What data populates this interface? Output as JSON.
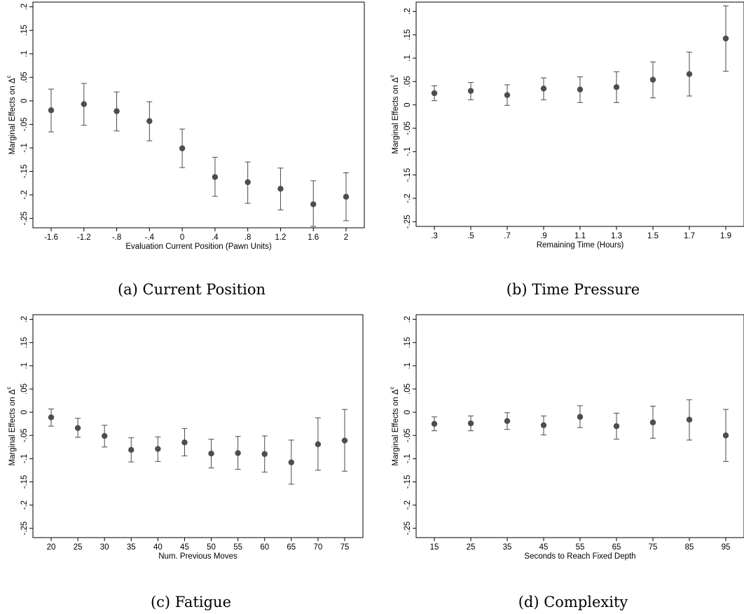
{
  "chart_data": [
    {
      "type": "scatter",
      "subtype": "point-estimates-with-confidence-intervals",
      "caption": "(a) Current Position",
      "xlabel": "Evaluation Current Position (Pawn Units)",
      "ylabel": "Marginal Effects on Δ",
      "ylabel_superscript": "c",
      "x_tick_labels": [
        "-1.6",
        "-1.2",
        "-.8",
        "-.4",
        "0",
        ".4",
        ".8",
        "1.2",
        "1.6",
        "2"
      ],
      "y_tick_labels": [
        ".2",
        ".15",
        ".1",
        ".05",
        "0",
        "-.05",
        "-.1",
        "-.15",
        "-.2",
        "-.25"
      ],
      "ylim": [
        -0.27,
        0.21
      ],
      "grid": false,
      "points": [
        {
          "x": "-1.6",
          "y": -0.02,
          "lo": -0.066,
          "hi": 0.025
        },
        {
          "x": "-1.2",
          "y": -0.007,
          "lo": -0.052,
          "hi": 0.037
        },
        {
          "x": "-.8",
          "y": -0.022,
          "lo": -0.064,
          "hi": 0.019
        },
        {
          "x": "-.4",
          "y": -0.043,
          "lo": -0.085,
          "hi": -0.002
        },
        {
          "x": "0",
          "y": -0.101,
          "lo": -0.142,
          "hi": -0.06
        },
        {
          "x": ".4",
          "y": -0.162,
          "lo": -0.203,
          "hi": -0.12
        },
        {
          "x": ".8",
          "y": -0.173,
          "lo": -0.218,
          "hi": -0.13
        },
        {
          "x": "1.2",
          "y": -0.187,
          "lo": -0.232,
          "hi": -0.143
        },
        {
          "x": "1.6",
          "y": -0.22,
          "lo": -0.267,
          "hi": -0.17
        },
        {
          "x": "2",
          "y": -0.204,
          "lo": -0.255,
          "hi": -0.153
        }
      ]
    },
    {
      "type": "scatter",
      "subtype": "point-estimates-with-confidence-intervals",
      "caption": "(b) Time Pressure",
      "xlabel": "Remaining Time (Hours)",
      "ylabel": "Marginal Effects on Δ",
      "ylabel_superscript": "c",
      "x_tick_labels": [
        ".3",
        ".5",
        ".7",
        ".9",
        "1.1",
        "1.3",
        "1.5",
        "1.7",
        "1.9"
      ],
      "y_tick_labels": [
        ".2",
        ".15",
        ".1",
        ".05",
        "0",
        "-.05",
        "-.1",
        "-.15",
        "-.2",
        "-.25"
      ],
      "ylim": [
        -0.26,
        0.22
      ],
      "grid": false,
      "points": [
        {
          "x": ".3",
          "y": 0.025,
          "lo": 0.009,
          "hi": 0.041
        },
        {
          "x": ".5",
          "y": 0.03,
          "lo": 0.011,
          "hi": 0.048
        },
        {
          "x": ".7",
          "y": 0.021,
          "lo": -0.001,
          "hi": 0.043
        },
        {
          "x": ".9",
          "y": 0.035,
          "lo": 0.011,
          "hi": 0.058
        },
        {
          "x": "1.1",
          "y": 0.033,
          "lo": 0.005,
          "hi": 0.06
        },
        {
          "x": "1.3",
          "y": 0.038,
          "lo": 0.005,
          "hi": 0.071
        },
        {
          "x": "1.5",
          "y": 0.054,
          "lo": 0.015,
          "hi": 0.092
        },
        {
          "x": "1.7",
          "y": 0.066,
          "lo": 0.019,
          "hi": 0.113
        },
        {
          "x": "1.9",
          "y": 0.142,
          "lo": 0.072,
          "hi": 0.212
        }
      ]
    },
    {
      "type": "scatter",
      "subtype": "point-estimates-with-confidence-intervals",
      "caption": "(c) Fatigue",
      "xlabel": "Num. Previous Moves",
      "ylabel": "Marginal Effects on Δ",
      "ylabel_superscript": "c",
      "x_tick_labels": [
        "20",
        "25",
        "30",
        "35",
        "40",
        "45",
        "50",
        "55",
        "60",
        "65",
        "70",
        "75"
      ],
      "y_tick_labels": [
        ".2",
        ".15",
        ".1",
        ".05",
        "0",
        "-.05",
        "-.1",
        "-.15",
        "-.2",
        "-.25"
      ],
      "ylim": [
        -0.27,
        0.21
      ],
      "grid": false,
      "points": [
        {
          "x": "20",
          "y": -0.011,
          "lo": -0.03,
          "hi": 0.007
        },
        {
          "x": "25",
          "y": -0.034,
          "lo": -0.054,
          "hi": -0.013
        },
        {
          "x": "30",
          "y": -0.051,
          "lo": -0.075,
          "hi": -0.028
        },
        {
          "x": "35",
          "y": -0.081,
          "lo": -0.107,
          "hi": -0.055
        },
        {
          "x": "40",
          "y": -0.079,
          "lo": -0.106,
          "hi": -0.053
        },
        {
          "x": "45",
          "y": -0.065,
          "lo": -0.094,
          "hi": -0.035
        },
        {
          "x": "50",
          "y": -0.089,
          "lo": -0.12,
          "hi": -0.058
        },
        {
          "x": "55",
          "y": -0.088,
          "lo": -0.123,
          "hi": -0.052
        },
        {
          "x": "60",
          "y": -0.09,
          "lo": -0.129,
          "hi": -0.051
        },
        {
          "x": "65",
          "y": -0.108,
          "lo": -0.155,
          "hi": -0.06
        },
        {
          "x": "70",
          "y": -0.069,
          "lo": -0.125,
          "hi": -0.012
        },
        {
          "x": "75",
          "y": -0.061,
          "lo": -0.127,
          "hi": 0.006
        }
      ]
    },
    {
      "type": "scatter",
      "subtype": "point-estimates-with-confidence-intervals",
      "caption": "(d) Complexity",
      "xlabel": "Seconds to Reach Fixed Depth",
      "ylabel": "Marginal Effects on Δ",
      "ylabel_superscript": "c",
      "x_tick_labels": [
        "15",
        "25",
        "35",
        "45",
        "55",
        "65",
        "75",
        "85",
        "95"
      ],
      "y_tick_labels": [
        ".2",
        ".15",
        ".1",
        ".05",
        "0",
        "-.05",
        "-.1",
        "-.15",
        "-.2",
        "-.25"
      ],
      "ylim": [
        -0.27,
        0.21
      ],
      "grid": false,
      "points": [
        {
          "x": "15",
          "y": -0.025,
          "lo": -0.04,
          "hi": -0.01
        },
        {
          "x": "25",
          "y": -0.024,
          "lo": -0.04,
          "hi": -0.008
        },
        {
          "x": "35",
          "y": -0.019,
          "lo": -0.037,
          "hi": -0.001
        },
        {
          "x": "45",
          "y": -0.028,
          "lo": -0.049,
          "hi": -0.008
        },
        {
          "x": "55",
          "y": -0.01,
          "lo": -0.033,
          "hi": 0.014
        },
        {
          "x": "65",
          "y": -0.03,
          "lo": -0.058,
          "hi": -0.002
        },
        {
          "x": "75",
          "y": -0.022,
          "lo": -0.056,
          "hi": 0.013
        },
        {
          "x": "85",
          "y": -0.016,
          "lo": -0.06,
          "hi": 0.027
        },
        {
          "x": "95",
          "y": -0.05,
          "lo": -0.106,
          "hi": 0.006
        }
      ]
    }
  ]
}
